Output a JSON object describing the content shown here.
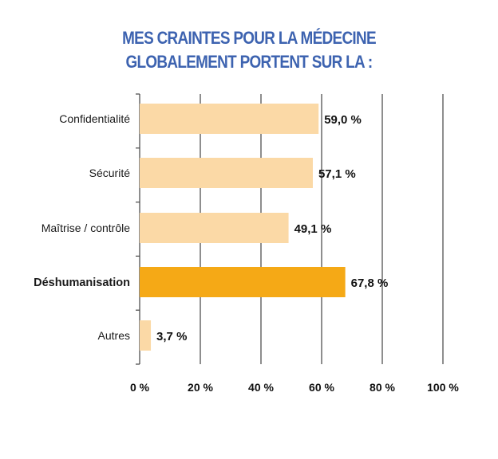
{
  "chart_data": {
    "type": "bar",
    "orientation": "horizontal",
    "title": "MES CRAINTES POUR LA MÉDECINE GLOBALEMENT PORTENT SUR LA :",
    "title_lines": [
      "MES CRAINTES POUR LA MÉDECINE",
      "GLOBALEMENT PORTENT SUR LA :"
    ],
    "categories": [
      "Confidentialité",
      "Sécurité",
      "Maîtrise / contrôle",
      "Déshumanisation",
      "Autres"
    ],
    "values": [
      59.0,
      57.1,
      49.1,
      67.8,
      3.7
    ],
    "value_labels": [
      "59,0 %",
      "57,1 %",
      "49,1 %",
      "67,8 %",
      "3,7 %"
    ],
    "highlighted": "Déshumanisation",
    "xlim": [
      0,
      100
    ],
    "x_ticks": [
      0,
      20,
      40,
      60,
      80,
      100
    ],
    "x_tick_labels": [
      "0 %",
      "20 %",
      "40 %",
      "60 %",
      "80 %",
      "100 %"
    ],
    "grid": "vertical",
    "legend": "none",
    "colors": {
      "bar": "#fbd9a6",
      "bar_highlight": "#f5a916",
      "title": "#3d63b0",
      "grid": "#444444"
    }
  }
}
